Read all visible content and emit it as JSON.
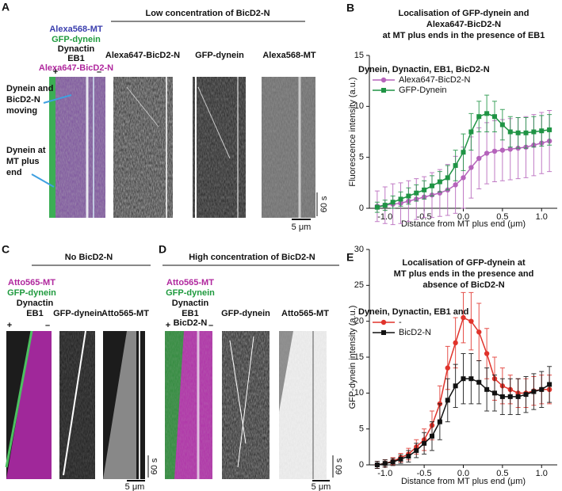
{
  "panels": {
    "A": {
      "letter": "A",
      "title": "Low concentration of BicD2-N",
      "channels": [
        "Alexa568-MT",
        "GFP-dynein",
        "Dynactin",
        "EB1",
        "Alexa647-BicD2-N"
      ],
      "plus": "+",
      "minus": "–",
      "kymo_labels": [
        "Alexa647-BicD2-N",
        "GFP-dynein",
        "Alexa568-MT"
      ],
      "annotations": [
        [
          "Dynein and",
          "BicD2-N",
          "moving"
        ],
        [
          "Dynein at",
          "MT plus",
          "end"
        ]
      ],
      "time_scale": "60 s",
      "length_scale": "5 μm"
    },
    "C": {
      "letter": "C",
      "title": "No BicD2-N",
      "channels": [
        "Atto565-MT",
        "GFP-dynein",
        "Dynactin",
        "EB1"
      ],
      "plus": "+",
      "minus": "–",
      "kymo_labels": [
        "GFP-dynein",
        "Atto565-MT"
      ],
      "time_scale": "60 s",
      "length_scale": "5 μm"
    },
    "D": {
      "letter": "D",
      "title": "High concentration of BicD2-N",
      "channels": [
        "Atto565-MT",
        "GFP-dynein",
        "Dynactin",
        "EB1",
        "BicD2-N"
      ],
      "plus": "+",
      "minus": "–",
      "kymo_labels": [
        "GFP-dynein",
        "Atto565-MT"
      ],
      "time_scale": "60 s",
      "length_scale": "5 μm"
    }
  },
  "chart_data": [
    {
      "type": "line",
      "letter": "B",
      "title": [
        "Localisation of GFP-dynein and",
        "Alexa647-BicD2-N",
        "at MT plus ends in the presence of EB1"
      ],
      "legend_title": "Dynein, Dynactin, EB1, BicD2-N",
      "xlabel": "Distance from MT plus end (μm)",
      "ylabel": "Fluorescence intensity (a.u.)",
      "x": [
        -1.1,
        -1.0,
        -0.9,
        -0.8,
        -0.7,
        -0.6,
        -0.5,
        -0.4,
        -0.3,
        -0.2,
        -0.1,
        0.0,
        0.1,
        0.2,
        0.3,
        0.4,
        0.5,
        0.6,
        0.7,
        0.8,
        0.9,
        1.0,
        1.1
      ],
      "xlim": [
        -1.2,
        1.2
      ],
      "xticks": [
        {
          "value": -1.0,
          "label": "-1.0"
        },
        -0.5,
        {
          "value": 0,
          "label": "0.0"
        },
        0.5,
        {
          "value": 1.0,
          "label": "1.0"
        }
      ],
      "ylim": [
        0,
        15
      ],
      "yticks": [
        0,
        5,
        10,
        15
      ],
      "series": [
        {
          "name": "Alexa647-BicD2-N",
          "color": "#b564bb",
          "marker": "circle",
          "values": [
            0.2,
            0.3,
            0.4,
            0.5,
            0.7,
            0.9,
            1.1,
            1.3,
            1.5,
            1.8,
            2.3,
            3.0,
            4.0,
            4.9,
            5.4,
            5.6,
            5.7,
            5.8,
            5.9,
            6.0,
            6.2,
            6.4,
            6.6
          ],
          "errors": [
            1.5,
            1.8,
            2,
            2,
            2,
            2,
            2,
            2.2,
            2.3,
            2.5,
            2.8,
            3,
            3,
            3,
            3,
            3,
            3,
            3,
            3,
            3,
            3,
            3,
            3
          ]
        },
        {
          "name": "GFP-Dynein",
          "color": "#1f9444",
          "marker": "square",
          "values": [
            0.1,
            0.3,
            0.6,
            0.9,
            1.2,
            1.5,
            1.8,
            2.2,
            2.6,
            3.0,
            4.2,
            5.5,
            7.5,
            9.0,
            9.3,
            9.0,
            8.2,
            7.5,
            7.4,
            7.4,
            7.5,
            7.6,
            7.7
          ],
          "errors": [
            0.5,
            0.5,
            0.6,
            0.7,
            0.8,
            0.8,
            0.9,
            1,
            1,
            1.2,
            1.5,
            1.8,
            1.8,
            1.5,
            1.8,
            1.5,
            1.5,
            1.5,
            1.5,
            1.5,
            1.5,
            1.5,
            1.5
          ]
        }
      ]
    },
    {
      "type": "line",
      "letter": "E",
      "title": [
        "Localisation of GFP-dynein at",
        "MT plus ends in the presence and",
        "absence of BicD2-N"
      ],
      "legend_title": "Dynein, Dynactin, EB1 and",
      "xlabel": "Distance from MT plus end (μm)",
      "ylabel": "GFP-dynein intensity (a.u.)",
      "x": [
        -1.1,
        -1.0,
        -0.9,
        -0.8,
        -0.7,
        -0.6,
        -0.5,
        -0.4,
        -0.3,
        -0.2,
        -0.1,
        0.0,
        0.1,
        0.2,
        0.3,
        0.4,
        0.5,
        0.6,
        0.7,
        0.8,
        0.9,
        1.0,
        1.1
      ],
      "xlim": [
        -1.2,
        1.2
      ],
      "xticks": [
        {
          "value": -1.0,
          "label": "-1.0"
        },
        -0.5,
        {
          "value": 0,
          "label": "0.0"
        },
        0.5,
        {
          "value": 1.0,
          "label": "1.0"
        }
      ],
      "ylim": [
        0,
        30
      ],
      "yticks": [
        0,
        5,
        10,
        15,
        20,
        25,
        30
      ],
      "series": [
        {
          "name": "-",
          "color": "#e0332b",
          "marker": "circle",
          "values": [
            0,
            0.2,
            0.5,
            1.0,
            1.5,
            2.5,
            3.5,
            5.5,
            8.5,
            13.5,
            17.0,
            20.5,
            20.0,
            18.5,
            15.5,
            12.0,
            11.0,
            10.5,
            10.0,
            10.0,
            10.3,
            10.5,
            10.5
          ],
          "errors": [
            0.5,
            0.5,
            0.5,
            0.6,
            0.8,
            1,
            1.5,
            2,
            2.5,
            3,
            3.5,
            3.5,
            4,
            4,
            3.5,
            3,
            2.5,
            2,
            2,
            2,
            2,
            2,
            2
          ]
        },
        {
          "name": "BicD2-N",
          "color": "#111111",
          "marker": "square",
          "values": [
            0,
            0.2,
            0.4,
            0.8,
            1.2,
            2,
            3,
            4,
            6,
            9,
            11,
            12,
            12,
            11.5,
            10.5,
            10,
            9.5,
            9.5,
            9.5,
            9.8,
            10.2,
            10.5,
            11.2
          ],
          "errors": [
            0.5,
            0.5,
            0.5,
            0.6,
            0.8,
            1,
            1.5,
            2,
            2.5,
            3,
            3,
            3.5,
            3.5,
            3,
            3,
            2.5,
            2.5,
            2.5,
            2.5,
            2.5,
            2.5,
            2.5,
            2.5
          ]
        }
      ]
    }
  ]
}
